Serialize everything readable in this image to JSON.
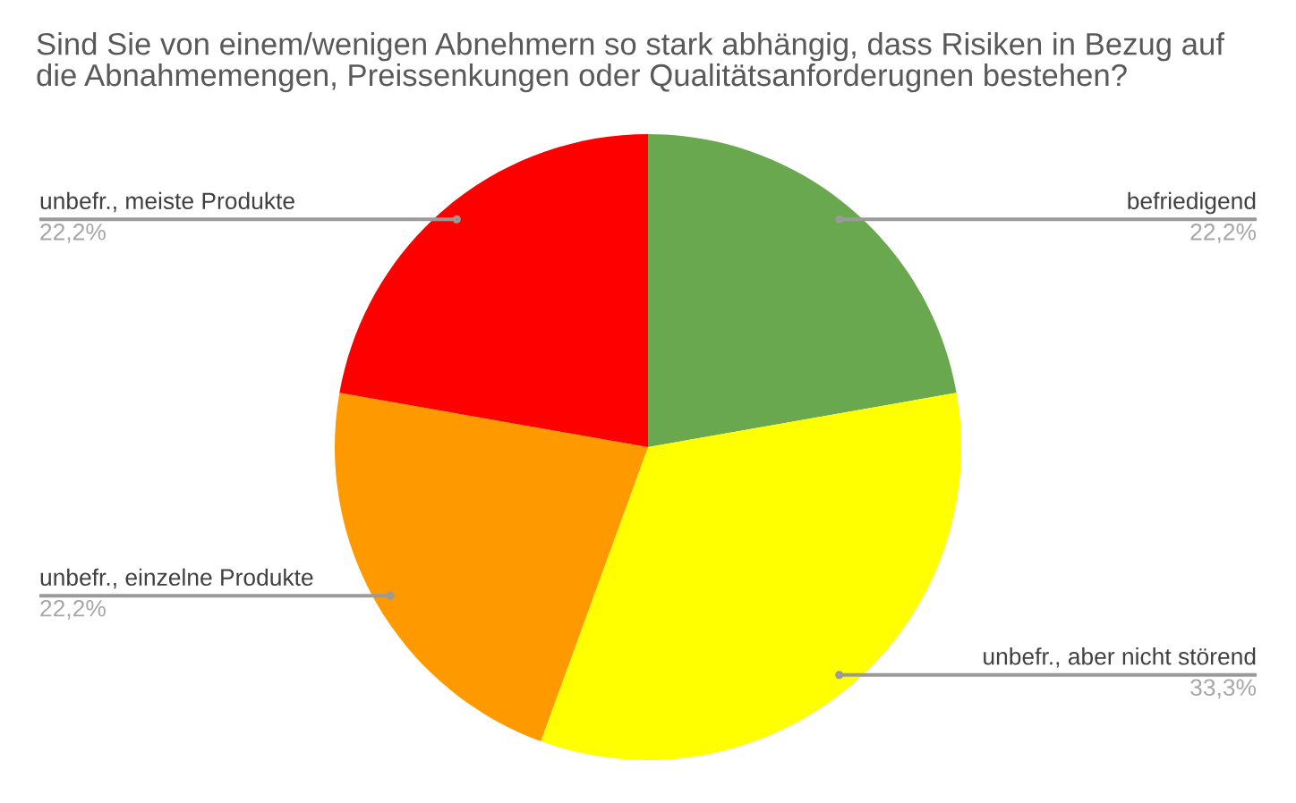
{
  "chart_data": {
    "type": "pie",
    "title": "Sind Sie von einem/wenigen Abnehmern so stark abhängig, dass Risiken in Bezug auf\ndie Abnahmemengen, Preissenkungen oder Qualitätsanforderugnen bestehen?",
    "categories": [
      "befriedigend",
      "unbefr., aber nicht störend",
      "unbefr., einzelne Produkte",
      "unbefr., meiste Produkte"
    ],
    "values": [
      22.2,
      33.3,
      22.2,
      22.2
    ],
    "colors": [
      "#6aa84f",
      "#ffff00",
      "#ff9900",
      "#ff0000"
    ],
    "value_labels": [
      "22,2%",
      "33,3%",
      "22,2%",
      "22,2%"
    ]
  }
}
